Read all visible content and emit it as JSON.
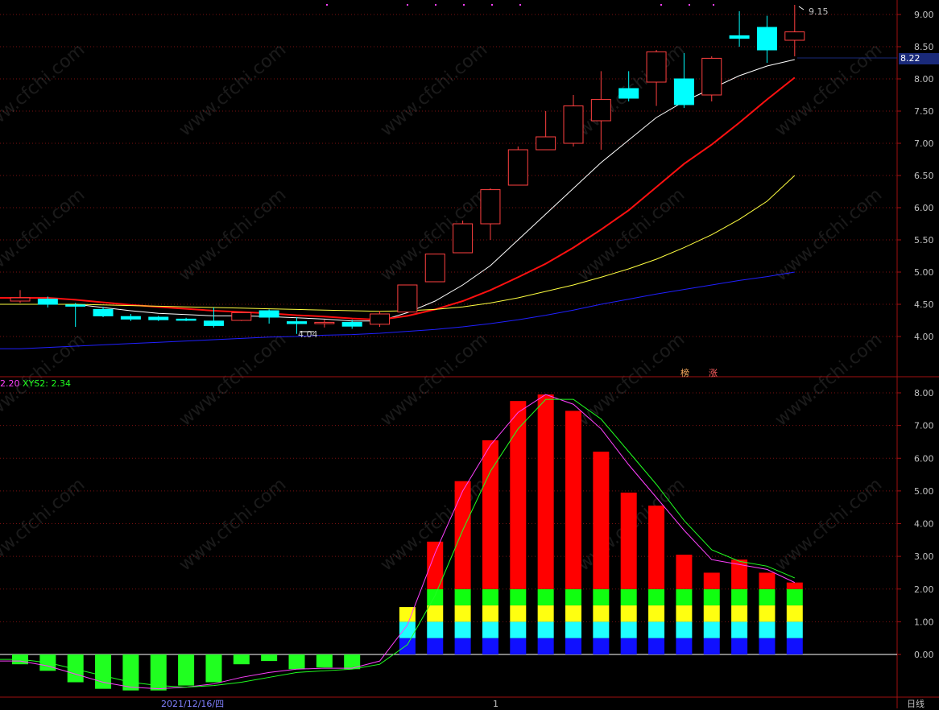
{
  "colors": {
    "background": "#000000",
    "frame": "#a01010",
    "up_candle": "#ff4040",
    "down_candle": "#00ffff",
    "ma_white": "#ffffff",
    "ma_red": "#ff1010",
    "ma_yellow": "#ffff40",
    "ma_blue": "#2020ff",
    "bar_red": "#ff0000",
    "bar_green_neg": "#20ff20",
    "xys1": "#ff40ff",
    "xys2": "#20ff20"
  },
  "watermark": "www.cfchi.com",
  "labels": {
    "low_marker": "4.04",
    "high_marker": "9.15",
    "current_price": "8.22",
    "tag_a": "榜",
    "tag_b": "涨",
    "date": "2021/12/16/四",
    "period": "日线",
    "indicator_value_1": "2.20",
    "indicator_name_2": "XYS2: ",
    "indicator_value_2": "2.34",
    "cursor_mark": "1"
  },
  "chart_data": [
    {
      "type": "candlestick",
      "y_axis_ticks": [
        "9.00",
        "8.50",
        "8.00",
        "7.50",
        "7.00",
        "6.50",
        "6.00",
        "5.50",
        "5.00",
        "4.50",
        "4.00"
      ],
      "ylim": [
        3.6,
        9.2
      ],
      "candles": [
        {
          "o": 4.55,
          "h": 4.72,
          "l": 4.52,
          "c": 4.6
        },
        {
          "o": 4.58,
          "h": 4.62,
          "l": 4.45,
          "c": 4.5
        },
        {
          "o": 4.49,
          "h": 4.52,
          "l": 4.15,
          "c": 4.47
        },
        {
          "o": 4.42,
          "h": 4.46,
          "l": 4.3,
          "c": 4.32
        },
        {
          "o": 4.31,
          "h": 4.35,
          "l": 4.24,
          "c": 4.27
        },
        {
          "o": 4.3,
          "h": 4.32,
          "l": 4.24,
          "c": 4.26
        },
        {
          "o": 4.27,
          "h": 4.29,
          "l": 4.24,
          "c": 4.26
        },
        {
          "o": 4.24,
          "h": 4.45,
          "l": 4.14,
          "c": 4.17
        },
        {
          "o": 4.25,
          "h": 4.38,
          "l": 4.24,
          "c": 4.37
        },
        {
          "o": 4.4,
          "h": 4.42,
          "l": 4.2,
          "c": 4.3
        },
        {
          "o": 4.23,
          "h": 4.3,
          "l": 4.04,
          "c": 4.2
        },
        {
          "o": 4.2,
          "h": 4.26,
          "l": 4.14,
          "c": 4.22
        },
        {
          "o": 4.22,
          "h": 4.26,
          "l": 4.12,
          "c": 4.16
        },
        {
          "o": 4.19,
          "h": 4.4,
          "l": 4.15,
          "c": 4.35
        },
        {
          "o": 4.38,
          "h": 4.8,
          "l": 4.38,
          "c": 4.8
        },
        {
          "o": 4.85,
          "h": 5.28,
          "l": 4.85,
          "c": 5.28
        },
        {
          "o": 5.3,
          "h": 5.8,
          "l": 5.3,
          "c": 5.75
        },
        {
          "o": 5.75,
          "h": 6.3,
          "l": 5.5,
          "c": 6.28
        },
        {
          "o": 6.35,
          "h": 6.95,
          "l": 6.35,
          "c": 6.9
        },
        {
          "o": 6.9,
          "h": 7.5,
          "l": 6.9,
          "c": 7.1
        },
        {
          "o": 7.0,
          "h": 7.75,
          "l": 6.95,
          "c": 7.58
        },
        {
          "o": 7.35,
          "h": 8.12,
          "l": 6.9,
          "c": 7.68
        },
        {
          "o": 7.85,
          "h": 8.12,
          "l": 7.65,
          "c": 7.7
        },
        {
          "o": 7.95,
          "h": 8.45,
          "l": 7.58,
          "c": 8.42
        },
        {
          "o": 8.0,
          "h": 8.4,
          "l": 7.55,
          "c": 7.6
        },
        {
          "o": 7.75,
          "h": 8.35,
          "l": 7.65,
          "c": 8.32
        },
        {
          "o": 8.67,
          "h": 9.05,
          "l": 8.5,
          "c": 8.63
        },
        {
          "o": 8.8,
          "h": 8.98,
          "l": 8.25,
          "c": 8.45
        },
        {
          "o": 8.6,
          "h": 9.15,
          "l": 8.35,
          "c": 8.73
        }
      ],
      "ma_series": [
        {
          "color": "ma_white",
          "values": [
            4.5,
            4.5,
            4.5,
            4.45,
            4.4,
            4.36,
            4.34,
            4.32,
            4.32,
            4.31,
            4.29,
            4.27,
            4.24,
            4.24,
            4.37,
            4.55,
            4.8,
            5.1,
            5.5,
            5.9,
            6.3,
            6.7,
            7.05,
            7.4,
            7.65,
            7.85,
            8.05,
            8.2,
            8.3
          ]
        },
        {
          "color": "ma_red",
          "values": [
            4.6,
            4.6,
            4.57,
            4.53,
            4.49,
            4.46,
            4.43,
            4.4,
            4.38,
            4.36,
            4.33,
            4.31,
            4.28,
            4.26,
            4.32,
            4.42,
            4.55,
            4.72,
            4.92,
            5.13,
            5.38,
            5.66,
            5.96,
            6.32,
            6.68,
            6.98,
            7.32,
            7.68,
            8.02
          ]
        },
        {
          "color": "ma_yellow",
          "values": [
            4.5,
            4.5,
            4.5,
            4.49,
            4.48,
            4.47,
            4.46,
            4.45,
            4.44,
            4.43,
            4.42,
            4.41,
            4.4,
            4.39,
            4.4,
            4.42,
            4.46,
            4.52,
            4.6,
            4.7,
            4.8,
            4.92,
            5.05,
            5.2,
            5.38,
            5.58,
            5.82,
            6.1,
            6.5
          ]
        },
        {
          "color": "ma_blue",
          "values": [
            3.81,
            3.83,
            3.85,
            3.87,
            3.89,
            3.91,
            3.93,
            3.95,
            3.97,
            3.99,
            4.0,
            4.02,
            4.03,
            4.05,
            4.08,
            4.11,
            4.15,
            4.2,
            4.26,
            4.33,
            4.41,
            4.5,
            4.58,
            4.66,
            4.73,
            4.8,
            4.87,
            4.93,
            5.0
          ]
        }
      ]
    },
    {
      "type": "bar",
      "y_axis_ticks": [
        "8.00",
        "7.00",
        "6.00",
        "5.00",
        "4.00",
        "3.00",
        "2.00",
        "1.00",
        "0.00"
      ],
      "ylim": [
        -1.2,
        8.3
      ],
      "values": [
        -0.3,
        -0.5,
        -0.85,
        -1.05,
        -1.1,
        -1.1,
        -0.95,
        -0.85,
        -0.3,
        -0.2,
        -0.45,
        -0.4,
        -0.45,
        0.0,
        1.45,
        3.45,
        5.3,
        6.55,
        7.75,
        7.95,
        7.45,
        6.2,
        4.95,
        4.55,
        3.05,
        2.5,
        2.9,
        2.5,
        2.2
      ],
      "xys1": [
        -0.2,
        -0.35,
        -0.6,
        -0.85,
        -1.0,
        -1.05,
        -1.0,
        -0.9,
        -0.7,
        -0.55,
        -0.45,
        -0.42,
        -0.42,
        -0.2,
        0.9,
        3.1,
        5.0,
        6.4,
        7.4,
        7.95,
        7.65,
        6.9,
        5.8,
        4.8,
        3.8,
        2.9,
        2.75,
        2.6,
        2.2
      ],
      "xys2": [
        -0.15,
        -0.25,
        -0.45,
        -0.65,
        -0.85,
        -0.95,
        -1.0,
        -0.95,
        -0.85,
        -0.7,
        -0.55,
        -0.5,
        -0.45,
        -0.3,
        0.3,
        1.8,
        3.8,
        5.6,
        6.9,
        7.8,
        7.8,
        7.2,
        6.2,
        5.2,
        4.1,
        3.2,
        2.85,
        2.7,
        2.34
      ],
      "stack_thresholds": [
        0.5,
        1.0,
        1.5,
        2.0
      ],
      "stack_colors": [
        "#1010ff",
        "#20ffff",
        "#ffff10",
        "#10ff10"
      ]
    }
  ]
}
